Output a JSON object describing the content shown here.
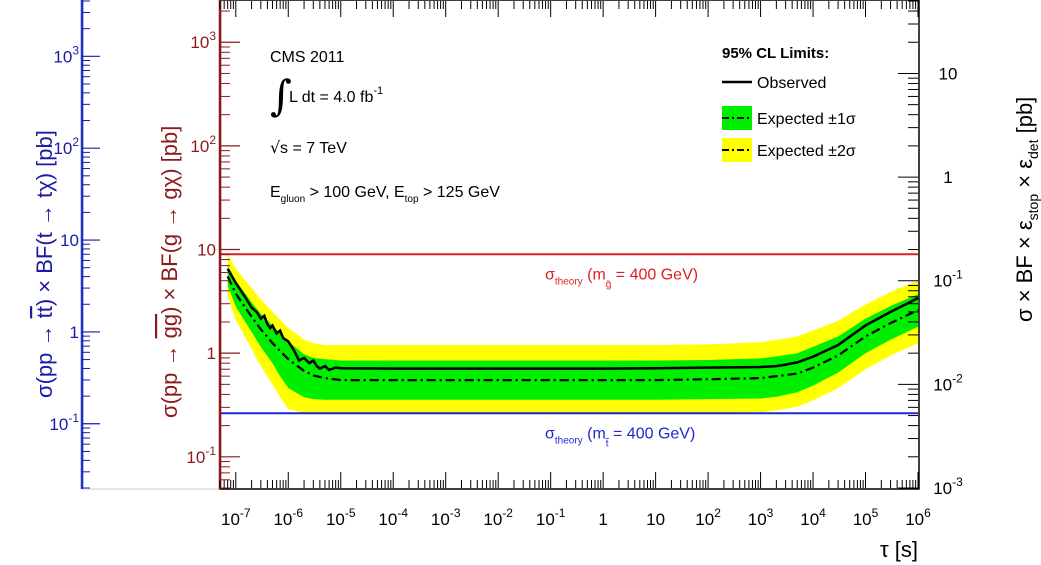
{
  "chart_data": {
    "type": "line",
    "x_scale": "log",
    "xlabel": "τ [s]",
    "xlim": [
      5e-08,
      1000000.0
    ],
    "x_ticks": [
      {
        "v": 1e-07,
        "label": "10",
        "exp": "-7"
      },
      {
        "v": 1e-06,
        "label": "10",
        "exp": "-6"
      },
      {
        "v": 1e-05,
        "label": "10",
        "exp": "-5"
      },
      {
        "v": 0.0001,
        "label": "10",
        "exp": "-4"
      },
      {
        "v": 0.001,
        "label": "10",
        "exp": "-3"
      },
      {
        "v": 0.01,
        "label": "10",
        "exp": "-2"
      },
      {
        "v": 0.1,
        "label": "10",
        "exp": "-1"
      },
      {
        "v": 1,
        "label": "1",
        "exp": ""
      },
      {
        "v": 10,
        "label": "10",
        "exp": ""
      },
      {
        "v": 100,
        "label": "10",
        "exp": "2"
      },
      {
        "v": 1000,
        "label": "10",
        "exp": "3"
      },
      {
        "v": 10000,
        "label": "10",
        "exp": "4"
      },
      {
        "v": 100000,
        "label": "10",
        "exp": "5"
      },
      {
        "v": 1000000,
        "label": "10",
        "exp": "6"
      }
    ],
    "gluino_axis": {
      "label_parts": [
        "σ(pp → ",
        "gg",
        ") × BF(",
        "g",
        " → g",
        "χ",
        ")  [pb]"
      ],
      "color": "#8b1a1a",
      "ylim": [
        0.05,
        2500
      ],
      "ticks": [
        {
          "v": 0.1,
          "label": "10",
          "exp": "-1"
        },
        {
          "v": 1,
          "label": "1",
          "exp": ""
        },
        {
          "v": 10,
          "label": "10",
          "exp": ""
        },
        {
          "v": 100,
          "label": "10",
          "exp": "2"
        },
        {
          "v": 1000,
          "label": "10",
          "exp": "3"
        }
      ]
    },
    "stop_axis": {
      "label_parts": [
        "σ(pp → ",
        "tt",
        ") × BF(",
        "t",
        " → t",
        "χ",
        ")  [pb]"
      ],
      "color": "#1a1aa6",
      "ylim": [
        0.02,
        4000
      ],
      "ticks": [
        {
          "v": 0.1,
          "label": "10",
          "exp": "-1"
        },
        {
          "v": 1,
          "label": "1",
          "exp": ""
        },
        {
          "v": 10,
          "label": "10",
          "exp": ""
        },
        {
          "v": 100,
          "label": "10",
          "exp": "2"
        },
        {
          "v": 1000,
          "label": "10",
          "exp": "3"
        }
      ]
    },
    "right_axis": {
      "label_parts": [
        "σ × BF × ε",
        "stop",
        " × ε",
        "det",
        "   [pb]"
      ],
      "ylim": [
        0.001,
        50
      ],
      "ticks": [
        {
          "v": 0.001,
          "label": "10",
          "exp": "-3"
        },
        {
          "v": 0.01,
          "label": "10",
          "exp": "-2"
        },
        {
          "v": 0.1,
          "label": "10",
          "exp": "-1"
        },
        {
          "v": 1,
          "label": "1",
          "exp": ""
        },
        {
          "v": 10,
          "label": "10",
          "exp": ""
        }
      ]
    },
    "series": [
      {
        "name": "Observed",
        "style": "solid",
        "color": "#000000",
        "x": [
          7e-08,
          1e-07,
          1.5e-07,
          2e-07,
          2.5e-07,
          3e-07,
          3.5e-07,
          4e-07,
          4.5e-07,
          5e-07,
          6e-07,
          7e-07,
          8e-07,
          1e-06,
          1.3e-06,
          1.6e-06,
          2e-06,
          2.5e-06,
          3e-06,
          3.5e-06,
          4e-06,
          5e-06,
          6e-06,
          8e-06,
          1e-05,
          0.0001,
          0.001,
          0.01,
          0.1,
          1,
          10,
          100,
          500,
          1000,
          2000,
          3000,
          5000,
          10000,
          30000,
          100000,
          300000,
          1000000
        ],
        "y": [
          0.13,
          0.095,
          0.07,
          0.055,
          0.05,
          0.043,
          0.046,
          0.038,
          0.035,
          0.037,
          0.031,
          0.033,
          0.028,
          0.026,
          0.021,
          0.017,
          0.018,
          0.016,
          0.017,
          0.015,
          0.0142,
          0.015,
          0.0138,
          0.0145,
          0.0143,
          0.0142,
          0.0142,
          0.0142,
          0.0142,
          0.0142,
          0.0143,
          0.0145,
          0.0146,
          0.0147,
          0.015,
          0.0155,
          0.0163,
          0.0185,
          0.024,
          0.037,
          0.05,
          0.068
        ]
      },
      {
        "name": "Expected ±1σ",
        "style": "dashdot",
        "color": "#000000",
        "band_color": "#00ee00",
        "x": [
          7e-08,
          1e-07,
          2e-07,
          3e-07,
          5e-07,
          7e-07,
          1e-06,
          2e-06,
          3e-06,
          5e-06,
          1e-05,
          0.0001,
          0.001,
          0.01,
          0.1,
          1,
          10,
          100,
          1000,
          2000,
          5000,
          10000,
          30000,
          100000,
          300000,
          1000000
        ],
        "y": [
          0.11,
          0.075,
          0.045,
          0.034,
          0.025,
          0.021,
          0.0175,
          0.0135,
          0.0122,
          0.0115,
          0.011,
          0.011,
          0.011,
          0.011,
          0.011,
          0.011,
          0.011,
          0.0112,
          0.0115,
          0.012,
          0.0127,
          0.0145,
          0.019,
          0.029,
          0.039,
          0.052
        ],
        "lo": [
          0.09,
          0.056,
          0.032,
          0.023,
          0.016,
          0.012,
          0.0092,
          0.0075,
          0.0072,
          0.0071,
          0.0071,
          0.0071,
          0.0071,
          0.0071,
          0.0071,
          0.0071,
          0.0071,
          0.0072,
          0.0073,
          0.0076,
          0.0084,
          0.0097,
          0.013,
          0.02,
          0.027,
          0.036
        ],
        "hi": [
          0.14,
          0.1,
          0.062,
          0.048,
          0.037,
          0.031,
          0.026,
          0.0195,
          0.018,
          0.0175,
          0.017,
          0.017,
          0.017,
          0.017,
          0.017,
          0.017,
          0.017,
          0.0172,
          0.0178,
          0.0186,
          0.02,
          0.023,
          0.029,
          0.043,
          0.057,
          0.074
        ]
      },
      {
        "name": "Expected ±2σ",
        "style": "dashdot",
        "color": "#000000",
        "band_color": "#ffff00",
        "x": [
          7e-08,
          1e-07,
          2e-07,
          3e-07,
          5e-07,
          7e-07,
          1e-06,
          2e-06,
          3e-06,
          5e-06,
          1e-05,
          0.0001,
          0.001,
          0.01,
          0.1,
          1,
          10,
          100,
          1000,
          2000,
          5000,
          10000,
          30000,
          100000,
          300000,
          1000000
        ],
        "lo": [
          0.07,
          0.042,
          0.022,
          0.015,
          0.01,
          0.0075,
          0.0058,
          0.0053,
          0.0052,
          0.0052,
          0.0052,
          0.0052,
          0.0052,
          0.0052,
          0.0052,
          0.0052,
          0.0052,
          0.0053,
          0.0054,
          0.0056,
          0.0061,
          0.007,
          0.0092,
          0.014,
          0.019,
          0.025
        ],
        "hi": [
          0.18,
          0.13,
          0.085,
          0.066,
          0.05,
          0.042,
          0.035,
          0.027,
          0.025,
          0.024,
          0.024,
          0.024,
          0.024,
          0.024,
          0.024,
          0.024,
          0.024,
          0.0243,
          0.0255,
          0.0268,
          0.029,
          0.033,
          0.041,
          0.059,
          0.078,
          0.1
        ]
      }
    ],
    "reference_lines": [
      {
        "axis": "gluino",
        "value": 9.0,
        "color": "#e02020",
        "label_main": "σ",
        "label_sub": "theory",
        "label_mid": " (m",
        "label_msub": "g̃",
        "label_end": " = 400 GeV)"
      },
      {
        "axis": "stop",
        "value": 0.13,
        "color": "#1a2ad0",
        "label_main": "σ",
        "label_sub": "theory",
        "label_mid": " (m",
        "label_msub": "t̃",
        "label_end": " = 400 GeV)"
      }
    ],
    "annotations": {
      "experiment": "CMS 2011",
      "lumi_prefix": "L dt = 4.0 fb",
      "lumi_exp": "-1",
      "sqrt_s": "s = 7 TeV",
      "cuts_a": "E",
      "cuts_a_sub": "gluon",
      "cuts_b": " > 100 GeV, E",
      "cuts_b_sub": "top",
      "cuts_c": " > 125 GeV"
    },
    "legend": {
      "title": "95% CL Limits:",
      "placement": "top-right",
      "entries": [
        "Observed",
        "Expected ±1σ",
        "Expected ±2σ"
      ]
    },
    "grid": false
  }
}
